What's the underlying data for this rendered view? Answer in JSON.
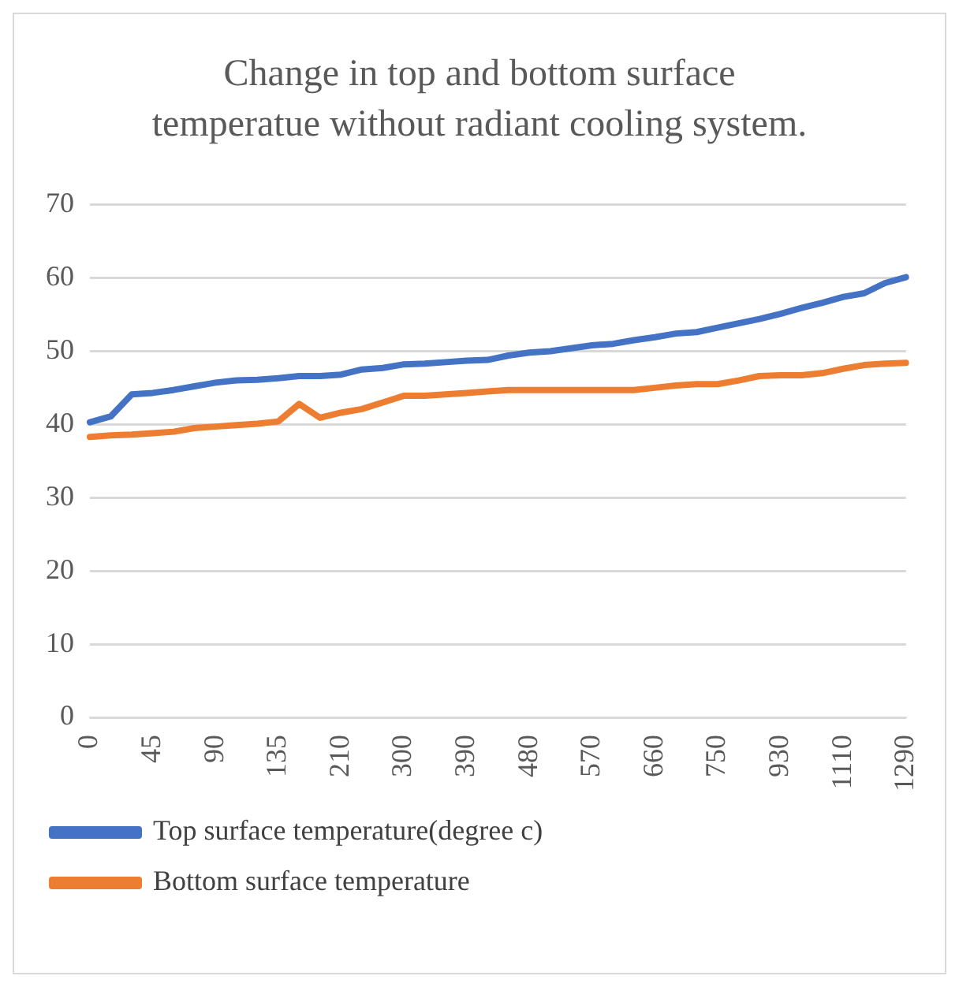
{
  "chart_data": {
    "type": "line",
    "title": "Change in top and bottom surface temperatue without radiant cooling system.",
    "categories": [
      "0",
      null,
      null,
      "45",
      null,
      null,
      "90",
      null,
      null,
      "135",
      null,
      null,
      "210",
      null,
      null,
      "300",
      null,
      null,
      "390",
      null,
      null,
      "480",
      null,
      null,
      "570",
      null,
      null,
      "660",
      null,
      null,
      "750",
      null,
      null,
      "930",
      null,
      null,
      "1110",
      null,
      null,
      "1290"
    ],
    "series": [
      {
        "name": "Top surface temperature(degree c)",
        "color": "#4472c4",
        "values": [
          40.3,
          41.1,
          44.1,
          44.3,
          44.7,
          45.2,
          45.7,
          46.0,
          46.1,
          46.3,
          46.6,
          46.6,
          46.8,
          47.5,
          47.7,
          48.2,
          48.3,
          48.5,
          48.7,
          48.8,
          49.4,
          49.8,
          50.0,
          50.4,
          50.8,
          51.0,
          51.5,
          51.9,
          52.4,
          52.6,
          53.2,
          53.8,
          54.4,
          55.1,
          55.9,
          56.6,
          57.4,
          57.9,
          59.3,
          60.1
        ]
      },
      {
        "name": "Bottom surface temperature",
        "color": "#ed7d31",
        "values": [
          38.3,
          38.5,
          38.6,
          38.8,
          39.0,
          39.5,
          39.7,
          39.9,
          40.1,
          40.4,
          42.8,
          40.9,
          41.6,
          42.1,
          43.0,
          43.9,
          43.9,
          44.1,
          44.3,
          44.5,
          44.7,
          44.7,
          44.7,
          44.7,
          44.7,
          44.7,
          44.7,
          45.0,
          45.3,
          45.5,
          45.5,
          46.0,
          46.6,
          46.7,
          46.7,
          47.0,
          47.6,
          48.1,
          48.3,
          48.4
        ]
      }
    ],
    "ylim": [
      0,
      70
    ],
    "yticks": [
      0,
      10,
      20,
      30,
      40,
      50,
      60,
      70
    ],
    "grid": "y",
    "legend": "bottom",
    "marker": "none",
    "line_style": "solid"
  }
}
